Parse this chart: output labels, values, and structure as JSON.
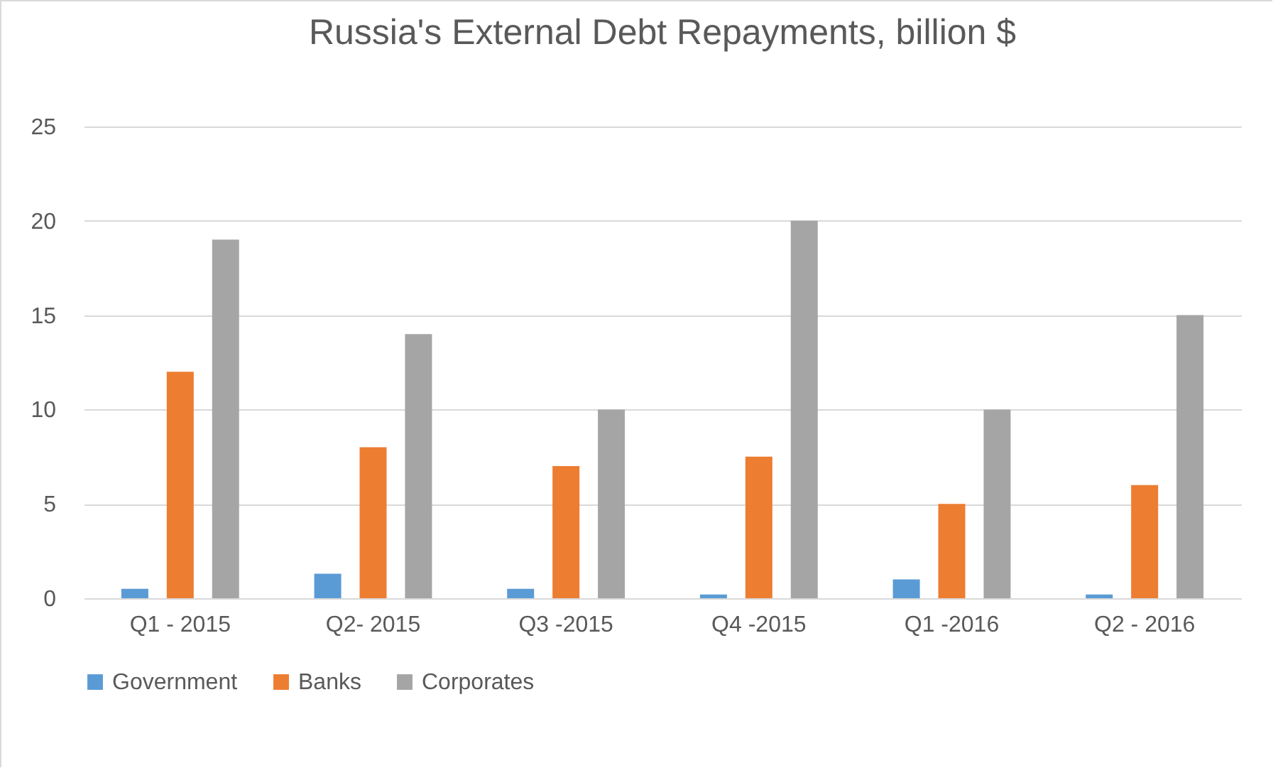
{
  "chart_data": {
    "type": "bar",
    "title": "Russia's External Debt Repayments, billion $",
    "categories": [
      "Q1 - 2015",
      "Q2- 2015",
      "Q3 -2015",
      "Q4 -2015",
      "Q1 -2016",
      "Q2 - 2016"
    ],
    "series": [
      {
        "name": "Government",
        "color": "#5b9bd5",
        "values": [
          0.5,
          1.3,
          0.5,
          0.2,
          1.0,
          0.2
        ]
      },
      {
        "name": "Banks",
        "color": "#ed7d31",
        "values": [
          12,
          8,
          7,
          7.5,
          5,
          6
        ]
      },
      {
        "name": "Corporates",
        "color": "#a5a5a5",
        "values": [
          19,
          14,
          10,
          20,
          10,
          15
        ]
      }
    ],
    "ylim": [
      0,
      25
    ],
    "yticks": [
      0,
      5,
      10,
      15,
      20,
      25
    ],
    "grid": "y",
    "legend": "bottom"
  }
}
